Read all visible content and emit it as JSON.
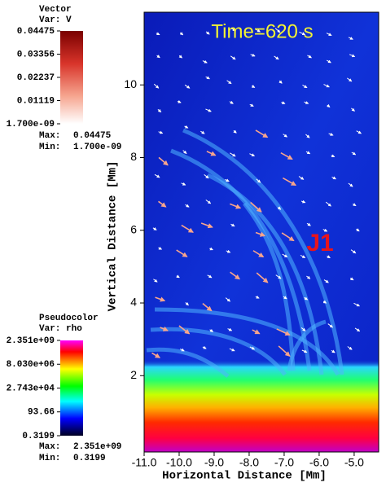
{
  "chart_data": {
    "type": "pseudocolor",
    "xlabel": "Horizontal Distance [Mm]",
    "ylabel": "Vertical Distance [Mm]",
    "xlim": [
      -11.0,
      -4.3
    ],
    "ylim": [
      -0.1,
      12.0
    ],
    "xticks": [
      {
        "value": -11,
        "label": "-11.0"
      },
      {
        "value": -10,
        "label": "-10.0"
      },
      {
        "value": -9,
        "label": "-9.0"
      },
      {
        "value": -8,
        "label": "-8.0"
      },
      {
        "value": -7,
        "label": "-7.0"
      },
      {
        "value": -6,
        "label": "-6.0"
      },
      {
        "value": -5,
        "label": "-5.0"
      }
    ],
    "yticks": [
      2,
      4,
      6,
      8,
      10
    ],
    "annotations": [
      "Time=620 s",
      "J1"
    ],
    "vector_legend": {
      "title": "Vector",
      "var": "Var: V",
      "log": false,
      "ticks": [
        0.04475,
        0.03356,
        0.02237,
        0.01119,
        {
          "value": 1.7e-09,
          "label": "1.700e-09"
        }
      ],
      "max_label": "Max:",
      "max": 0.04475,
      "min_label": "Min:",
      "min": {
        "value": 1.7e-09,
        "label": "1.700e-09"
      }
    },
    "pseudocolor_legend": {
      "title": "Pseudocolor",
      "var": "Var: rho",
      "log": true,
      "ticks": [
        {
          "value": 2351000000,
          "label": "2.351e+09"
        },
        {
          "value": 8030000,
          "label": "8.030e+06"
        },
        {
          "value": 27430,
          "label": "2.743e+04"
        },
        93.66,
        0.3199
      ],
      "max_label": "Max:",
      "max": {
        "value": 2351000000,
        "label": "2.351e+09"
      },
      "min_label": "Min:",
      "min": 0.3199
    }
  }
}
